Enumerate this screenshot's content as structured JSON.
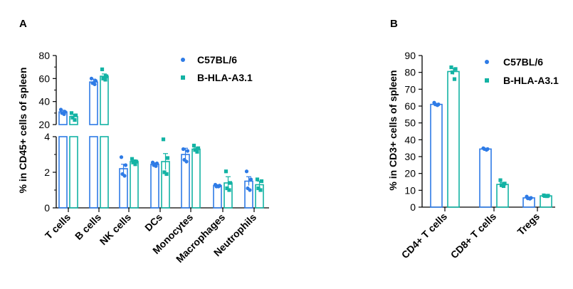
{
  "colors": {
    "c57": "#2E7BE6",
    "hla": "#13B3A4",
    "axis": "#000000"
  },
  "chart_data": [
    {
      "panel_label": "A",
      "type": "bar",
      "ylabel": "% in CD45+ cells of spleen",
      "broken_axis": true,
      "lower_ylim": [
        0,
        4
      ],
      "lower_ticks": [
        "0",
        "2",
        "4"
      ],
      "upper_ylim": [
        20,
        80
      ],
      "upper_ticks": [
        "20",
        "40",
        "60",
        "80"
      ],
      "categories": [
        "T cells",
        "B cells",
        "NK cells",
        "DCs",
        "Monocytes",
        "Macrophages",
        "Neutrophils"
      ],
      "legend": [
        "C57BL/6",
        "B-HLA-A3.1"
      ],
      "legend_position": "top-right",
      "series": [
        {
          "name": "C57BL/6",
          "values": [
            31,
            57,
            2.2,
            2.45,
            3.0,
            1.25,
            1.5
          ],
          "errors": [
            1.5,
            2.5,
            0.25,
            0.08,
            0.35,
            0.05,
            0.25
          ],
          "points": [
            [
              33,
              31,
              30,
              29
            ],
            [
              60,
              58,
              56,
              55
            ],
            [
              2.85,
              2.4,
              1.9,
              1.8
            ],
            [
              2.55,
              2.5,
              2.4,
              2.35
            ],
            [
              3.3,
              3.2,
              2.7,
              2.6
            ],
            [
              1.3,
              1.25,
              1.2,
              1.2
            ],
            [
              2.05,
              1.6,
              1.1,
              1.0
            ]
          ]
        },
        {
          "name": "B-HLA-A3.1",
          "values": [
            27,
            62,
            2.6,
            2.6,
            3.3,
            1.4,
            1.3
          ],
          "errors": [
            2.0,
            2.0,
            0.1,
            0.45,
            0.1,
            0.35,
            0.2
          ],
          "points": [
            [
              30,
              28,
              26,
              24
            ],
            [
              68,
              62,
              60,
              59
            ],
            [
              2.75,
              2.6,
              2.55,
              2.45
            ],
            [
              3.85,
              2.8,
              2.0,
              1.9
            ],
            [
              3.5,
              3.35,
              3.25,
              3.15
            ],
            [
              2.05,
              1.4,
              1.1,
              1.0
            ],
            [
              1.6,
              1.5,
              1.1,
              1.0
            ]
          ]
        }
      ]
    },
    {
      "panel_label": "B",
      "type": "bar",
      "ylabel": "% in CD3+ cells of spleen",
      "ylim": [
        0,
        90
      ],
      "yticks": [
        "0",
        "10",
        "20",
        "30",
        "40",
        "50",
        "60",
        "70",
        "80",
        "90"
      ],
      "categories": [
        "CD4+ T cells",
        "CD8+ T cells",
        "Tregs"
      ],
      "legend": [
        "C57BL/6",
        "B-HLA-A3.1"
      ],
      "legend_position": "top-right",
      "series": [
        {
          "name": "C57BL/6",
          "values": [
            61,
            34.5,
            5.5
          ],
          "errors": [
            0.5,
            0.4,
            0.5
          ],
          "points": [
            [
              62,
              61,
              61,
              60.5
            ],
            [
              35,
              34.5,
              34.5,
              34
            ],
            [
              6.3,
              5.5,
              5.2,
              5.0
            ]
          ]
        },
        {
          "name": "B-HLA-A3.1",
          "values": [
            80.5,
            13.5,
            6.7
          ],
          "errors": [
            1.8,
            1.0,
            0.2
          ],
          "points": [
            [
              83,
              82,
              80,
              76
            ],
            [
              16,
              14,
              13,
              12.5
            ],
            [
              7.0,
              6.8,
              6.6,
              6.5
            ]
          ]
        }
      ]
    }
  ]
}
